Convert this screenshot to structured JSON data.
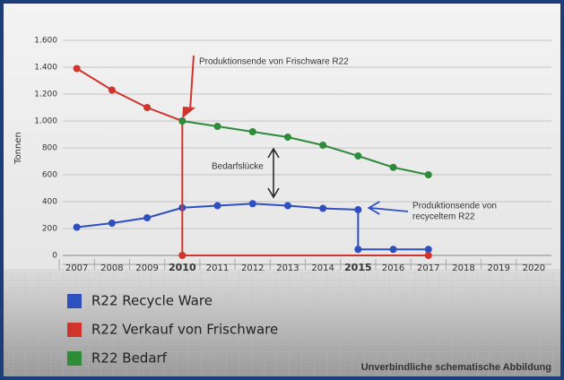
{
  "chart_data": {
    "type": "line",
    "y_label": "Tonnen",
    "ylim": [
      0,
      1600
    ],
    "yticks": [
      0,
      200,
      400,
      600,
      800,
      {
        "value": 1000,
        "label": "1.000"
      },
      {
        "value": 1200,
        "label": "1.200"
      },
      {
        "value": 1400,
        "label": "1.400"
      },
      {
        "value": 1600,
        "label": "1.600"
      }
    ],
    "xlim": [
      2006.6,
      2020.5
    ],
    "xticks": [
      2007,
      2008,
      2009,
      2010,
      2011,
      2012,
      2013,
      2014,
      2015,
      2016,
      2017,
      2018,
      2019,
      2020
    ],
    "highlighted_xticks": [
      {
        "value": 2010,
        "color": "#d0342c"
      },
      {
        "value": 2015,
        "color": "#2b3fa8"
      }
    ],
    "grid": true,
    "series": [
      {
        "name": "R22 Recycle Ware",
        "color": "#2e4fbf",
        "x": [
          2007,
          2008,
          2009,
          2010,
          2011,
          2012,
          2013,
          2014,
          2015,
          2015,
          2016,
          2017
        ],
        "values": [
          210,
          240,
          280,
          355,
          370,
          385,
          370,
          350,
          340,
          45,
          45,
          45
        ]
      },
      {
        "name": "R22 Verkauf von Frischware",
        "color": "#d0342c",
        "x": [
          2007,
          2008,
          2009,
          2010,
          2010,
          2017
        ],
        "values": [
          1390,
          1230,
          1100,
          1000,
          0,
          0
        ]
      },
      {
        "name": "R22 Bedarf",
        "color": "#2e8b3a",
        "x": [
          2010,
          2011,
          2012,
          2013,
          2014,
          2015,
          2016,
          2017
        ],
        "values": [
          1000,
          960,
          920,
          880,
          820,
          740,
          655,
          600
        ]
      }
    ],
    "annotations": {
      "red_end": "Produktionsende von Frischware R22",
      "gap": "Bedarfslücke",
      "blue_end": [
        "Produktionsende von",
        "recyceltem R22"
      ]
    },
    "footnote": "Unverbindliche schematische Abbildung"
  }
}
